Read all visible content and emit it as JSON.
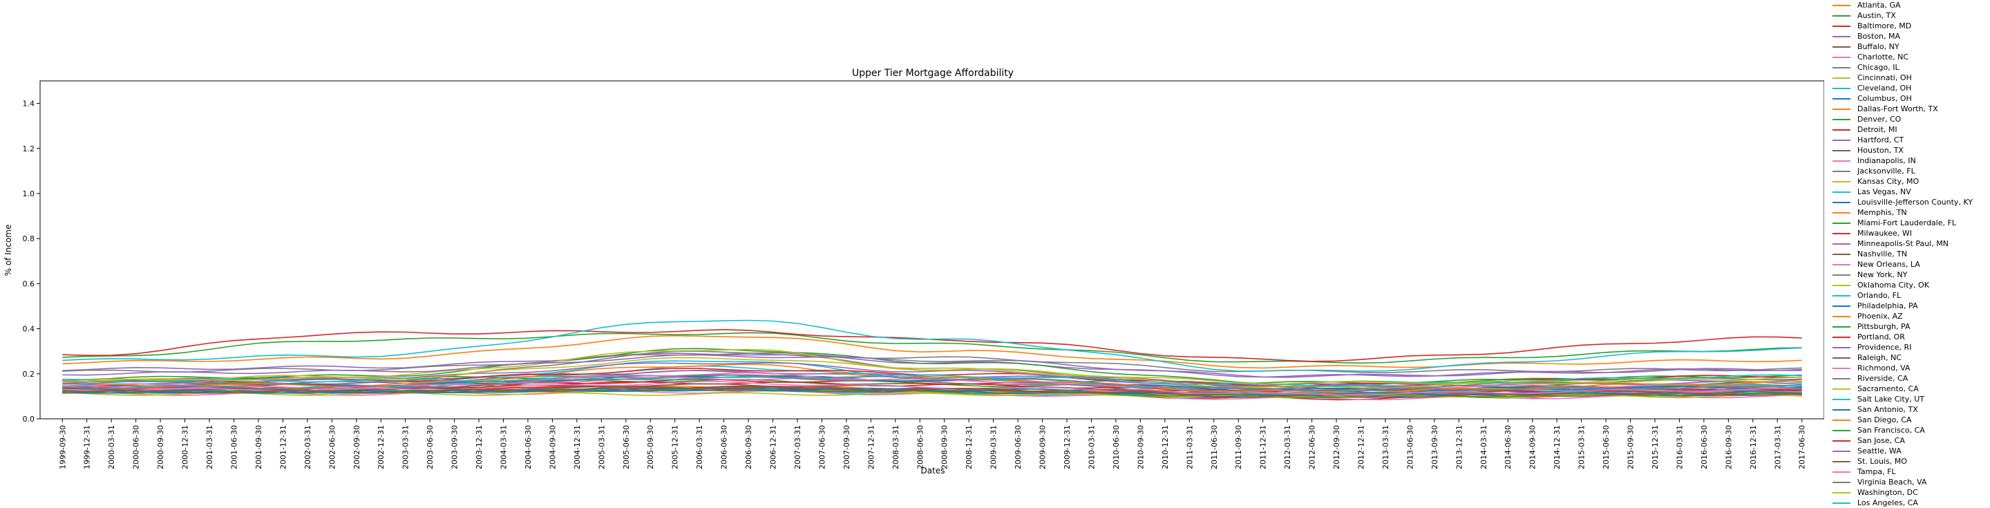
{
  "chart_data": {
    "type": "line",
    "title": "Upper Tier Mortgage Affordability",
    "xlabel": "Dates",
    "ylabel": "% of Income",
    "ylim": [
      0.0,
      1.5
    ],
    "yticks": [
      "0.0",
      "0.2",
      "0.4",
      "0.6",
      "0.8",
      "1.0",
      "1.2",
      "1.4"
    ],
    "grid": false,
    "legend_position": "right, outside plot",
    "x": [
      "1999-09-30",
      "1999-12-31",
      "2000-03-31",
      "2000-06-30",
      "2000-09-30",
      "2000-12-31",
      "2001-03-31",
      "2001-06-30",
      "2001-09-30",
      "2001-12-31",
      "2002-03-31",
      "2002-06-30",
      "2002-09-30",
      "2002-12-31",
      "2003-03-31",
      "2003-06-30",
      "2003-09-30",
      "2003-12-31",
      "2004-03-31",
      "2004-06-30",
      "2004-09-30",
      "2004-12-31",
      "2005-03-31",
      "2005-06-30",
      "2005-09-30",
      "2005-12-31",
      "2006-03-31",
      "2006-06-30",
      "2006-09-30",
      "2006-12-31",
      "2007-03-31",
      "2007-06-30",
      "2007-09-30",
      "2007-12-31",
      "2008-03-31",
      "2008-06-30",
      "2008-09-30",
      "2008-12-31",
      "2009-03-31",
      "2009-06-30",
      "2009-09-30",
      "2009-12-31",
      "2010-03-31",
      "2010-06-30",
      "2010-09-30",
      "2010-12-31",
      "2011-03-31",
      "2011-06-30",
      "2011-09-30",
      "2011-12-31",
      "2012-03-31",
      "2012-06-30",
      "2012-09-30",
      "2012-12-31",
      "2013-03-31",
      "2013-06-30",
      "2013-09-30",
      "2013-12-31",
      "2014-03-31",
      "2014-06-30",
      "2014-09-30",
      "2014-12-31",
      "2015-03-31",
      "2015-06-30",
      "2015-09-30",
      "2015-12-31",
      "2016-03-31",
      "2016-06-30",
      "2016-09-30",
      "2016-12-31",
      "2017-03-31",
      "2017-06-30"
    ],
    "series": [
      {
        "name": "Atlanta, GA",
        "color": "#ff7f0e",
        "key": [
          0.13,
          0.15,
          0.14,
          0.13,
          0.11,
          0.11
        ]
      },
      {
        "name": "Austin, TX",
        "color": "#2ca02c",
        "key": [
          0.14,
          0.16,
          0.17,
          0.15,
          0.14,
          0.16
        ]
      },
      {
        "name": "Baltimore, MD",
        "color": "#d62728",
        "key": [
          0.13,
          0.14,
          0.17,
          0.16,
          0.13,
          0.15
        ]
      },
      {
        "name": "Boston, MA",
        "color": "#9467bd",
        "key": [
          0.22,
          0.23,
          0.29,
          0.25,
          0.19,
          0.22
        ]
      },
      {
        "name": "Buffalo, NY",
        "color": "#8c564b",
        "key": [
          0.13,
          0.13,
          0.14,
          0.13,
          0.12,
          0.13
        ]
      },
      {
        "name": "Charlotte, NC",
        "color": "#e377c2",
        "key": [
          0.12,
          0.12,
          0.13,
          0.12,
          0.11,
          0.12
        ]
      },
      {
        "name": "Chicago, IL",
        "color": "#7f7f7f",
        "key": [
          0.15,
          0.16,
          0.21,
          0.18,
          0.13,
          0.14
        ]
      },
      {
        "name": "Cincinnati, OH",
        "color": "#bcbd22",
        "key": [
          0.12,
          0.12,
          0.13,
          0.12,
          0.1,
          0.11
        ]
      },
      {
        "name": "Cleveland, OH",
        "color": "#17becf",
        "key": [
          0.12,
          0.12,
          0.13,
          0.11,
          0.1,
          0.11
        ]
      },
      {
        "name": "Columbus, OH",
        "color": "#1f77b4",
        "key": [
          0.12,
          0.12,
          0.13,
          0.12,
          0.1,
          0.11
        ]
      },
      {
        "name": "Dallas-Fort Worth, TX",
        "color": "#ff7f0e",
        "key": [
          0.13,
          0.13,
          0.14,
          0.13,
          0.12,
          0.14
        ]
      },
      {
        "name": "Denver, CO",
        "color": "#2ca02c",
        "key": [
          0.17,
          0.18,
          0.19,
          0.17,
          0.16,
          0.19
        ]
      },
      {
        "name": "Detroit, MI",
        "color": "#d62728",
        "key": [
          0.14,
          0.14,
          0.14,
          0.12,
          0.09,
          0.11
        ]
      },
      {
        "name": "Hartford, CT",
        "color": "#9467bd",
        "key": [
          0.17,
          0.18,
          0.21,
          0.19,
          0.15,
          0.16
        ]
      },
      {
        "name": "Houston, TX",
        "color": "#8c564b",
        "key": [
          0.12,
          0.12,
          0.13,
          0.12,
          0.11,
          0.13
        ]
      },
      {
        "name": "Indianapolis, IN",
        "color": "#e377c2",
        "key": [
          0.11,
          0.11,
          0.12,
          0.11,
          0.09,
          0.1
        ]
      },
      {
        "name": "Jacksonville, FL",
        "color": "#7f7f7f",
        "key": [
          0.13,
          0.13,
          0.19,
          0.16,
          0.11,
          0.13
        ]
      },
      {
        "name": "Kansas City, MO",
        "color": "#bcbd22",
        "key": [
          0.12,
          0.12,
          0.13,
          0.12,
          0.1,
          0.11
        ]
      },
      {
        "name": "Las Vegas, NV",
        "color": "#17becf",
        "key": [
          0.15,
          0.15,
          0.26,
          0.18,
          0.11,
          0.15
        ]
      },
      {
        "name": "Louisville-Jefferson County, KY",
        "color": "#1f77b4",
        "key": [
          0.12,
          0.12,
          0.13,
          0.12,
          0.1,
          0.11
        ]
      },
      {
        "name": "Memphis, TN",
        "color": "#ff7f0e",
        "key": [
          0.12,
          0.12,
          0.13,
          0.12,
          0.1,
          0.11
        ]
      },
      {
        "name": "Miami-Fort Lauderdale, FL",
        "color": "#2ca02c",
        "key": [
          0.18,
          0.19,
          0.31,
          0.25,
          0.16,
          0.19
        ]
      },
      {
        "name": "Milwaukee, WI",
        "color": "#d62728",
        "key": [
          0.14,
          0.15,
          0.16,
          0.15,
          0.12,
          0.13
        ]
      },
      {
        "name": "Minneapolis-St Paul, MN",
        "color": "#9467bd",
        "key": [
          0.15,
          0.16,
          0.19,
          0.17,
          0.13,
          0.14
        ]
      },
      {
        "name": "Nashville, TN",
        "color": "#8c564b",
        "key": [
          0.14,
          0.14,
          0.15,
          0.14,
          0.12,
          0.15
        ]
      },
      {
        "name": "New Orleans, LA",
        "color": "#e377c2",
        "key": [
          0.15,
          0.15,
          0.18,
          0.17,
          0.14,
          0.15
        ]
      },
      {
        "name": "New York, NY",
        "color": "#7f7f7f",
        "key": [
          0.21,
          0.22,
          0.29,
          0.27,
          0.21,
          0.22
        ]
      },
      {
        "name": "Oklahoma City, OK",
        "color": "#bcbd22",
        "key": [
          0.11,
          0.11,
          0.11,
          0.11,
          0.1,
          0.1
        ]
      },
      {
        "name": "Orlando, FL",
        "color": "#17becf",
        "key": [
          0.14,
          0.14,
          0.23,
          0.18,
          0.12,
          0.15
        ]
      },
      {
        "name": "Philadelphia, PA",
        "color": "#1f77b4",
        "key": [
          0.14,
          0.15,
          0.19,
          0.17,
          0.13,
          0.14
        ]
      },
      {
        "name": "Phoenix, AZ",
        "color": "#ff7f0e",
        "key": [
          0.15,
          0.15,
          0.24,
          0.18,
          0.12,
          0.16
        ]
      },
      {
        "name": "Pittsburgh, PA",
        "color": "#2ca02c",
        "key": [
          0.12,
          0.12,
          0.13,
          0.12,
          0.1,
          0.11
        ]
      },
      {
        "name": "Portland, OR",
        "color": "#d62728",
        "key": [
          0.17,
          0.17,
          0.22,
          0.2,
          0.15,
          0.19
        ]
      },
      {
        "name": "Providence, RI",
        "color": "#9467bd",
        "key": [
          0.16,
          0.18,
          0.25,
          0.21,
          0.15,
          0.17
        ]
      },
      {
        "name": "Raleigh, NC",
        "color": "#8c564b",
        "key": [
          0.13,
          0.13,
          0.14,
          0.13,
          0.11,
          0.12
        ]
      },
      {
        "name": "Richmond, VA",
        "color": "#e377c2",
        "key": [
          0.13,
          0.13,
          0.16,
          0.14,
          0.11,
          0.12
        ]
      },
      {
        "name": "Riverside, CA",
        "color": "#7f7f7f",
        "key": [
          0.16,
          0.17,
          0.3,
          0.22,
          0.14,
          0.18
        ]
      },
      {
        "name": "Sacramento, CA",
        "color": "#bcbd22",
        "key": [
          0.17,
          0.19,
          0.31,
          0.22,
          0.14,
          0.18
        ]
      },
      {
        "name": "Salt Lake City, UT",
        "color": "#17becf",
        "key": [
          0.17,
          0.17,
          0.18,
          0.19,
          0.15,
          0.19
        ]
      },
      {
        "name": "San Antonio, TX",
        "color": "#1f77b4",
        "key": [
          0.12,
          0.12,
          0.13,
          0.13,
          0.11,
          0.12
        ]
      },
      {
        "name": "San Diego, CA",
        "color": "#ff7f0e",
        "key": [
          0.25,
          0.27,
          0.37,
          0.3,
          0.23,
          0.26
        ]
      },
      {
        "name": "San Francisco, CA",
        "color": "#2ca02c",
        "key": [
          0.27,
          0.35,
          0.38,
          0.33,
          0.25,
          0.31
        ]
      },
      {
        "name": "San Jose, CA",
        "color": "#d62728",
        "key": [
          0.28,
          0.38,
          0.39,
          0.35,
          0.26,
          0.36
        ]
      },
      {
        "name": "Seattle, WA",
        "color": "#9467bd",
        "key": [
          0.2,
          0.21,
          0.28,
          0.26,
          0.19,
          0.22
        ]
      },
      {
        "name": "St. Louis, MO",
        "color": "#8c564b",
        "key": [
          0.12,
          0.12,
          0.14,
          0.13,
          0.1,
          0.11
        ]
      },
      {
        "name": "Tampa, FL",
        "color": "#e377c2",
        "key": [
          0.14,
          0.14,
          0.2,
          0.17,
          0.11,
          0.13
        ]
      },
      {
        "name": "Virginia Beach, VA",
        "color": "#7f7f7f",
        "key": [
          0.14,
          0.14,
          0.19,
          0.18,
          0.13,
          0.14
        ]
      },
      {
        "name": "Washington, DC",
        "color": "#bcbd22",
        "key": [
          0.17,
          0.18,
          0.27,
          0.22,
          0.16,
          0.17
        ]
      },
      {
        "name": "Los Angeles, CA",
        "color": "#17becf",
        "key": [
          0.26,
          0.28,
          0.44,
          0.35,
          0.21,
          0.31
        ]
      }
    ]
  }
}
